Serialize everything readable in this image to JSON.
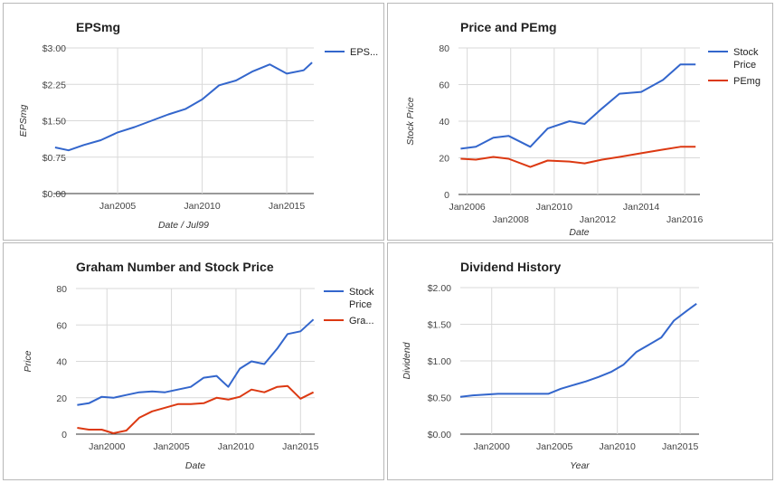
{
  "chart_data": [
    {
      "type": "line",
      "title": "EPSmg",
      "xlabel": "Date / Jul99",
      "ylabel": "EPSmg",
      "ylim": [
        0,
        3
      ],
      "xlim": [
        2001.2,
        2016.6
      ],
      "y_ticks": [
        "$0.00",
        "$0.75",
        "$1.50",
        "$2.25",
        "$3.00"
      ],
      "y_tick_values": [
        0,
        0.75,
        1.5,
        2.25,
        3
      ],
      "x_ticks": [
        "Jan2005",
        "Jan2010",
        "Jan2015"
      ],
      "x_tick_values": [
        2005,
        2010,
        2015
      ],
      "legend_position": "right",
      "grid": true,
      "series": [
        {
          "name": "EPS...",
          "color": "#3366cc",
          "x": [
            2001.3,
            2002.1,
            2003.0,
            2004.0,
            2005.0,
            2006.0,
            2007.0,
            2008.0,
            2009.0,
            2010.0,
            2011.0,
            2012.0,
            2013.0,
            2014.0,
            2015.0,
            2016.0,
            2016.5
          ],
          "y": [
            0.95,
            0.89,
            1.0,
            1.1,
            1.26,
            1.37,
            1.5,
            1.63,
            1.74,
            1.94,
            2.23,
            2.33,
            2.52,
            2.66,
            2.47,
            2.54,
            2.7
          ]
        }
      ]
    },
    {
      "type": "line",
      "title": "Price and PEmg",
      "xlabel": "Date",
      "ylabel": "Stock Price",
      "ylim": [
        0,
        80
      ],
      "xlim": [
        2005.6,
        2016.7
      ],
      "y_ticks": [
        "0",
        "20",
        "40",
        "60",
        "80"
      ],
      "y_tick_values": [
        0,
        20,
        40,
        60,
        80
      ],
      "x_ticks": [
        "Jan2006",
        "Jan2008",
        "Jan2010",
        "Jan2012",
        "Jan2014",
        "Jan2016"
      ],
      "x_tick_values": [
        2006,
        2008,
        2010,
        2012,
        2014,
        2016
      ],
      "legend_position": "right",
      "grid": true,
      "series": [
        {
          "name": "Stock Price",
          "color": "#3366cc",
          "x": [
            2005.7,
            2006.4,
            2007.2,
            2007.9,
            2008.9,
            2009.7,
            2010.7,
            2011.4,
            2012.2,
            2013.0,
            2014.0,
            2015.0,
            2015.8,
            2016.5
          ],
          "y": [
            25,
            26,
            31,
            32,
            26,
            36,
            40,
            38.5,
            47,
            55,
            56,
            62.5,
            71,
            71
          ]
        },
        {
          "name": "PEmg",
          "color": "#dc3912",
          "x": [
            2005.7,
            2006.4,
            2007.2,
            2007.9,
            2008.9,
            2009.7,
            2010.7,
            2011.4,
            2012.2,
            2013.0,
            2014.0,
            2015.0,
            2015.8,
            2016.5
          ],
          "y": [
            19.5,
            19,
            20.5,
            19.5,
            15,
            18.5,
            18,
            17,
            19,
            20.5,
            22.5,
            24.5,
            26,
            26
          ]
        }
      ]
    },
    {
      "type": "line",
      "title": "Graham Number and Stock Price",
      "xlabel": "Date",
      "ylabel": "Price",
      "ylim": [
        0,
        80
      ],
      "xlim": [
        1997.6,
        2016.1
      ],
      "y_ticks": [
        "0",
        "20",
        "40",
        "60",
        "80"
      ],
      "y_tick_values": [
        0,
        20,
        40,
        60,
        80
      ],
      "x_ticks": [
        "Jan2000",
        "Jan2005",
        "Jan2010",
        "Jan2015"
      ],
      "x_tick_values": [
        2000,
        2005,
        2010,
        2015
      ],
      "legend_position": "right",
      "grid": true,
      "series": [
        {
          "name": "Stock Price",
          "color": "#3366cc",
          "x": [
            1997.7,
            1998.6,
            1999.6,
            2000.5,
            2001.5,
            2002.5,
            2003.5,
            2004.5,
            2005.5,
            2006.5,
            2007.5,
            2008.5,
            2009.4,
            2010.3,
            2011.2,
            2012.2,
            2013.2,
            2014.0,
            2015.0,
            2016.0
          ],
          "y": [
            16,
            17,
            20.5,
            20,
            21.5,
            23,
            23.5,
            23,
            24.5,
            26,
            31,
            32,
            26,
            36,
            40,
            38.5,
            47,
            55,
            56.5,
            63
          ]
        },
        {
          "name": "Gra...",
          "color": "#dc3912",
          "x": [
            1997.7,
            1998.6,
            1999.6,
            2000.5,
            2001.5,
            2002.5,
            2003.5,
            2004.5,
            2005.5,
            2006.5,
            2007.5,
            2008.5,
            2009.4,
            2010.3,
            2011.2,
            2012.2,
            2013.2,
            2014.0,
            2015.0,
            2016.0
          ],
          "y": [
            3.5,
            2.5,
            2.5,
            0.5,
            2,
            9,
            12.5,
            14.5,
            16.5,
            16.5,
            17,
            20,
            19,
            20.5,
            24.5,
            23,
            26,
            26.5,
            19.5,
            23
          ]
        }
      ]
    },
    {
      "type": "line",
      "title": "Dividend History",
      "xlabel": "Year",
      "ylabel": "Dividend",
      "ylim": [
        0,
        2
      ],
      "xlim": [
        1997.5,
        2016.5
      ],
      "y_ticks": [
        "$0.00",
        "$0.50",
        "$1.00",
        "$1.50",
        "$2.00"
      ],
      "y_tick_values": [
        0,
        0.5,
        1,
        1.5,
        2
      ],
      "x_ticks": [
        "Jan2000",
        "Jan2005",
        "Jan2010",
        "Jan2015"
      ],
      "x_tick_values": [
        2000,
        2005,
        2010,
        2015
      ],
      "legend_position": "none",
      "grid": true,
      "series": [
        {
          "name": "",
          "color": "#3366cc",
          "x": [
            1997.5,
            1998.5,
            1999.5,
            2000.5,
            2001.5,
            2002.5,
            2003.5,
            2004.5,
            2005.5,
            2006.5,
            2007.5,
            2008.5,
            2009.5,
            2010.5,
            2011.5,
            2012.5,
            2013.5,
            2014.5,
            2015.5,
            2016.3
          ],
          "y": [
            0.51,
            0.53,
            0.54,
            0.55,
            0.55,
            0.55,
            0.55,
            0.55,
            0.62,
            0.67,
            0.72,
            0.78,
            0.85,
            0.95,
            1.12,
            1.22,
            1.32,
            1.55,
            1.68,
            1.78
          ]
        }
      ]
    }
  ]
}
